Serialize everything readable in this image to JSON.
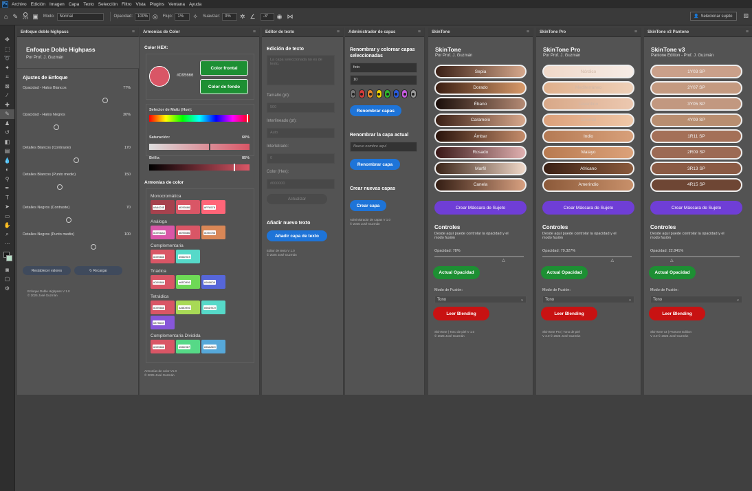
{
  "app": {
    "logo": "Ps",
    "menu": [
      "Archivo",
      "Edición",
      "Imagen",
      "Capa",
      "Texto",
      "Selección",
      "Filtro",
      "Vista",
      "Plugins",
      "Ventana",
      "Ayuda"
    ]
  },
  "options": {
    "brush_size": "215",
    "mode_label": "Modo:",
    "mode_value": "Normal",
    "opacity_label": "Opacidad:",
    "opacity_value": "100%",
    "flow_label": "Flujo:",
    "flow_value": "1%",
    "smooth_label": "Suavizar:",
    "smooth_value": "0%",
    "angle_value": "-3°",
    "select_subject": "Selecionar sujeto"
  },
  "enfoque": {
    "tab": "Enfoque doble highpass",
    "title": "Enfoque Doble Highpass",
    "author": "Por Prof. J. Guzmán",
    "section": "Ajustes de Enfoque",
    "controls": [
      {
        "label": "Opacidad - Halos Blancos",
        "value": "77%",
        "level": 0.77
      },
      {
        "label": "Opacidad - Halos Negros",
        "value": "30%",
        "level": 0.3
      },
      {
        "label": "Detalles Blancos (Contraste)",
        "value": "170",
        "level": 0.49
      },
      {
        "label": "Detalles Blancos (Punto medio)",
        "value": "150",
        "level": 0.33
      },
      {
        "label": "Detalles Negros (Contraste)",
        "value": "70",
        "level": 0.42
      },
      {
        "label": "Detalles Negros (Punto medio)",
        "value": "100",
        "level": 0.66
      }
    ],
    "reset": "Restablecer valores",
    "reload": "↻ Recargar",
    "footer1": "Enfoque Doble Highpass V 1.0",
    "footer2": "© 2025 José Guzmán"
  },
  "armonias": {
    "tab": "Armonías de Color",
    "hex_label": "Color HEX:",
    "hex_value": "#D95666",
    "front": "Color frontal",
    "back": "Color de fondo",
    "hue_label": "Selector de Matiz (Hue):",
    "sat_label": "Saturación:",
    "sat_value": "60%",
    "bri_label": "Brillo:",
    "bri_value": "85%",
    "harmonies_title": "Armonías de color",
    "groups": [
      {
        "name": "Monocromática",
        "chips": [
          {
            "hex": "#A6424E",
            "color": "#a6424e"
          },
          {
            "hex": "#D95666",
            "color": "#d95666"
          },
          {
            "hex": "#FF6578",
            "color": "#ff6578"
          }
        ]
      },
      {
        "name": "Análoga",
        "chips": [
          {
            "hex": "#D956A8",
            "color": "#d956a8"
          },
          {
            "hex": "#D95666",
            "color": "#d95666"
          },
          {
            "hex": "#D98756",
            "color": "#d98756"
          }
        ]
      },
      {
        "name": "Complementaria",
        "chips": [
          {
            "hex": "#D95666",
            "color": "#d95666"
          },
          {
            "hex": "#56D9C9",
            "color": "#56d9c9"
          }
        ]
      },
      {
        "name": "Triádica",
        "chips": [
          {
            "hex": "#D95666",
            "color": "#d95666"
          },
          {
            "hex": "#6ED956",
            "color": "#6ed956"
          },
          {
            "hex": "#5666D9",
            "color": "#5666d9"
          }
        ]
      },
      {
        "name": "Tetrádica",
        "chips": [
          {
            "hex": "#D95666",
            "color": "#d95666"
          },
          {
            "hex": "#A8D956",
            "color": "#a8d956"
          },
          {
            "hex": "#56D9C9",
            "color": "#56d9c9"
          },
          {
            "hex": "#8756D9",
            "color": "#8756d9"
          }
        ]
      },
      {
        "name": "Complementaria Dividida",
        "chips": [
          {
            "hex": "#D95666",
            "color": "#d95666"
          },
          {
            "hex": "#56D987",
            "color": "#56d987"
          },
          {
            "hex": "#56A8D9",
            "color": "#56a8d9"
          }
        ]
      }
    ],
    "footer1": "Armonías de color V1.0",
    "footer2": "© 2025 José Guzmán"
  },
  "editor": {
    "tab": "Editor de texto",
    "title": "Edición de texto",
    "textarea_placeholder": "La capa seleccionada no es de texto.",
    "size_label": "Tamaño (pt):",
    "size_value": "500",
    "leading_label": "Interlineado (pt):",
    "leading_value": "Auto",
    "tracking_label": "Interletrado:",
    "tracking_value": "0",
    "color_label": "Color (Hex):",
    "color_value": "#000000",
    "update": "Actualizar",
    "add_title": "Añadir nuevo texto",
    "add_button": "Añadir capa de texto",
    "footer1": "Editor de texto V 1.0",
    "footer2": "© 2025 José Guzmán"
  },
  "capas": {
    "tab": "Administrador de capas",
    "title": "Renombrar y colorear capas seleccionadas",
    "name_value": "foto",
    "number_value": "10",
    "color_dots": [
      "#777777",
      "#d63b3b",
      "#e8882b",
      "#f0d400",
      "#2fb52f",
      "#2a5be0",
      "#c95be0",
      "#999999"
    ],
    "rename_layers": "Renombrar capas",
    "rename_current_title": "Renombrar la capa actual",
    "new_name_placeholder": "Nuevo nombre aquí",
    "rename_layer": "Renombrar capa",
    "create_title": "Crear nuevas capas",
    "create_button": "Crear capa",
    "footer1": "Administrador de capas V 1.0",
    "footer2": "© 2025 José Guzmán"
  },
  "skintone": {
    "tab": "SkinTone",
    "title": "SkinTone",
    "author": "Por Prof. J. Guzmán",
    "tones": [
      {
        "label": "Sepia",
        "from": "#3a2016",
        "to": "#d6a88c"
      },
      {
        "label": "Dorado",
        "from": "#3a1e12",
        "to": "#d89a6a"
      },
      {
        "label": "Ébano",
        "from": "#1a0e0a",
        "to": "#b48a74"
      },
      {
        "label": "Caramelo",
        "from": "#3a2016",
        "to": "#d8a88c"
      },
      {
        "label": "Ámbar",
        "from": "#2a140c",
        "to": "#c48c6a"
      },
      {
        "label": "Rosado",
        "from": "#3a1818",
        "to": "#e0b0b0"
      },
      {
        "label": "Marfil",
        "from": "#3a2418",
        "to": "#f0d8c8"
      },
      {
        "label": "Canela",
        "from": "#341e14",
        "to": "#d8a080"
      }
    ],
    "mask": "Crear Máscara de Sujeto",
    "controls_title": "Controles",
    "controls_desc": "Desde aquí puede controlar la opacidad y el modo fusión",
    "opacity_text": "Opacidad: 78%",
    "opacity_level": 0.78,
    "update_opacity": "Actual Opacidad",
    "blend_label": "Modo de Fusión:",
    "blend_value": "Tono",
    "read_blend": "Leer Blending",
    "footer1": "SkinTone | Tono de piel V 1.0",
    "footer2": "© 2025 José Guzmán"
  },
  "skinpro": {
    "tab": "SkinTone Pro",
    "title": "SkinTone Pro",
    "author": "Por Prof. J. Guzmán",
    "tones": [
      {
        "label": "Nórdico",
        "from": "#f0d8c8",
        "to": "#f6ece6"
      },
      {
        "label": "Mediterráneo",
        "from": "#e0b08c",
        "to": "#eed0b8"
      },
      {
        "label": "Levantino",
        "from": "#d8a888",
        "to": "#ecc8b0"
      },
      {
        "label": "Oriental",
        "from": "#dca07a",
        "to": "#f0c8a8"
      },
      {
        "label": "Indio",
        "from": "#b47a54",
        "to": "#d8a07a"
      },
      {
        "label": "Malayo",
        "from": "#b87a50",
        "to": "#dca27a"
      },
      {
        "label": "Africano",
        "from": "#3a2014",
        "to": "#8a5a3c"
      },
      {
        "label": "Amerindio",
        "from": "#8c5a3a",
        "to": "#c8906a"
      }
    ],
    "mask": "Crear Máscara de Sujeto",
    "controls_title": "Controles",
    "controls_desc": "Desde aquí puede controlar la opacidad y el modo fusión",
    "opacity_text": "Opacidad: 79.327%",
    "opacity_level": 0.79,
    "update_opacity": "Actual Opacidad",
    "blend_label": "Modo de Fusión:",
    "blend_value": "Tono",
    "read_blend": "Leer Blending",
    "footer1": "SkinTone Pro | Tono de piel",
    "footer2": "V 2.0 © 2025 José Guzmán"
  },
  "skinv3": {
    "tab": "SkinTone v3 Pantone",
    "title": "SkinTone v3",
    "author": "Pantone Edition - Prof. J. Guzmán",
    "tones": [
      {
        "label": "1Y03 SP",
        "from": "#caa08a",
        "to": "#caa08a"
      },
      {
        "label": "2Y07 SP",
        "from": "#c49a80",
        "to": "#c49a80"
      },
      {
        "label": "3Y05 SP",
        "from": "#c29880",
        "to": "#c29880"
      },
      {
        "label": "4Y09 SP",
        "from": "#b88e70",
        "to": "#b88e70"
      },
      {
        "label": "1R11 SP",
        "from": "#a47058",
        "to": "#a47058"
      },
      {
        "label": "2R09 SP",
        "from": "#9c6a54",
        "to": "#9c6a54"
      },
      {
        "label": "3R13 SP",
        "from": "#8a5a44",
        "to": "#8a5a44"
      },
      {
        "label": "4R15 SP",
        "from": "#6e4634",
        "to": "#6e4634"
      }
    ],
    "mask": "Crear Máscara de Sujeto",
    "controls_title": "Controles",
    "controls_desc": "Desde aquí puede controlar la opacidad y el modo fusión",
    "opacity_text": "Opacidad: 22.841%",
    "opacity_level": 0.23,
    "update_opacity": "Actual Opacidad",
    "blend_label": "Modo de Fusión:",
    "blend_value": "Tono",
    "read_blend": "Leer Blending",
    "footer1": "SkinTone v3 | Pantone Edition",
    "footer2": "V 3.0 © 2025 José Guzmán"
  },
  "colors": {
    "accent_blue": "#1e74d8",
    "purple": "#6f3ed6",
    "green": "#1d8f33",
    "red": "#c81212",
    "hex_swatch": "#D95666"
  }
}
